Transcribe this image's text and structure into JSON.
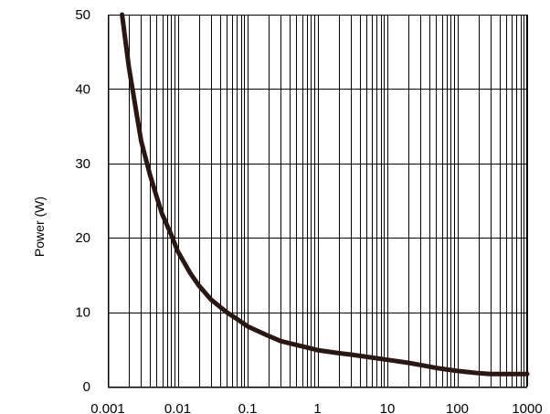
{
  "colors": {
    "curve": "#2a1712",
    "grid": "#000000",
    "background": "#ffffff"
  },
  "chart_data": {
    "type": "line",
    "title": "",
    "xlabel": "",
    "ylabel": "Power  (W)",
    "x_scale": "log",
    "xlim": [
      0.001,
      1000
    ],
    "ylim": [
      0,
      50
    ],
    "grid": true,
    "x_ticks": [
      0.001,
      0.01,
      0.1,
      1,
      10,
      100,
      1000
    ],
    "x_tick_labels": [
      "0.001",
      "0.01",
      "0.1",
      "1",
      "10",
      "100",
      "1000"
    ],
    "y_ticks": [
      0,
      10,
      20,
      30,
      40,
      50
    ],
    "y_tick_labels": [
      "0",
      "10",
      "20",
      "30",
      "40",
      "50"
    ],
    "series": [
      {
        "x": [
          0.0016,
          0.002,
          0.0025,
          0.003,
          0.004,
          0.005,
          0.006,
          0.008,
          0.01,
          0.015,
          0.02,
          0.03,
          0.05,
          0.07,
          0.1,
          0.2,
          0.3,
          0.5,
          1,
          2,
          3,
          5,
          10,
          20,
          30,
          50,
          100,
          200,
          300,
          500,
          1000
        ],
        "y": [
          50,
          43,
          37.5,
          33,
          28.5,
          25.5,
          23.2,
          20.5,
          18.2,
          15.3,
          13.6,
          11.7,
          10,
          9.1,
          8.1,
          6.8,
          6.1,
          5.6,
          4.9,
          4.5,
          4.3,
          4.0,
          3.6,
          3.2,
          2.9,
          2.5,
          2.1,
          1.8,
          1.7,
          1.7,
          1.7
        ]
      }
    ]
  }
}
